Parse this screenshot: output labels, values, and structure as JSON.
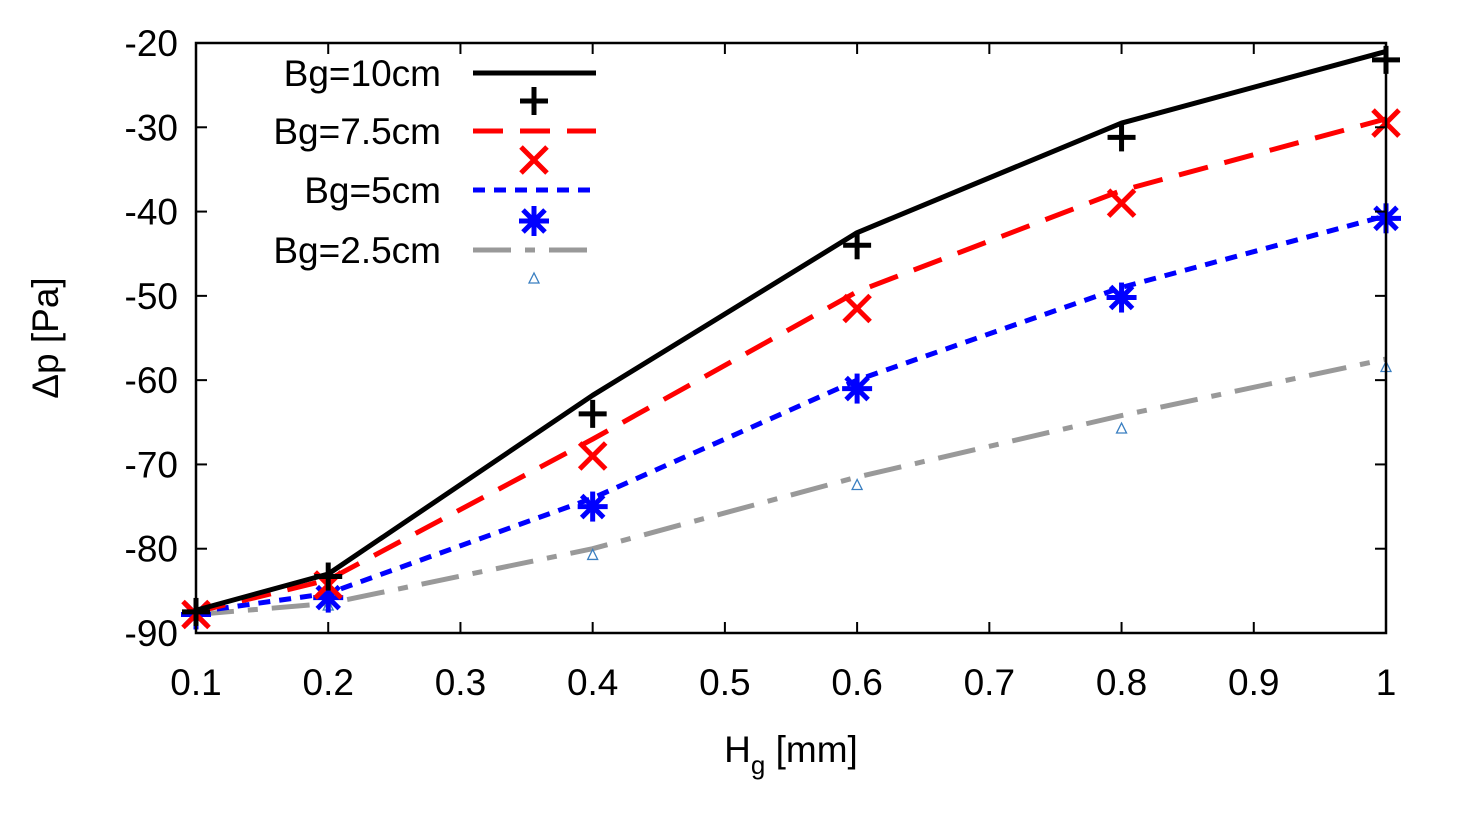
{
  "chart_data": {
    "type": "line",
    "title": "",
    "xlabel": {
      "main": "H",
      "sub": "g",
      "unit": " [mm]"
    },
    "ylabel": "Δp [Pa]",
    "xlim": [
      0.1,
      1.0
    ],
    "ylim": [
      -90,
      -20
    ],
    "xticks": [
      0.1,
      0.2,
      0.3,
      0.4,
      0.5,
      0.6,
      0.7,
      0.8,
      0.9,
      1.0
    ],
    "xtick_labels": [
      "0.1",
      "0.2",
      "0.3",
      "0.4",
      "0.5",
      "0.6",
      "0.7",
      "0.8",
      "0.9",
      "1"
    ],
    "yticks": [
      -90,
      -80,
      -70,
      -60,
      -50,
      -40,
      -30,
      -20
    ],
    "ytick_labels": [
      "-90",
      "-80",
      "-70",
      "-60",
      "-50",
      "-40",
      "-30",
      "-20"
    ],
    "grid": false,
    "legend_position": "top-left",
    "series": [
      {
        "name": "Bg=10cm",
        "color": "#000000",
        "dash": "solid",
        "marker": "plus",
        "x": [
          0.1,
          0.2,
          0.4,
          0.6,
          0.8,
          1.0
        ],
        "line_values": [
          -87.3,
          -83.0,
          -61.8,
          -42.5,
          -29.5,
          -21.0
        ],
        "marker_values": [
          -87.5,
          -83.3,
          -64.0,
          -44.0,
          -31.2,
          -22.0
        ]
      },
      {
        "name": "Bg=7.5cm",
        "color": "#ff0000",
        "dash": "dashed",
        "marker": "cross",
        "x": [
          0.1,
          0.2,
          0.4,
          0.6,
          0.8,
          1.0
        ],
        "line_values": [
          -87.5,
          -83.7,
          -67.0,
          -49.5,
          -37.5,
          -29.0
        ],
        "marker_values": [
          -87.8,
          -84.3,
          -69.0,
          -51.5,
          -39.0,
          -29.5
        ]
      },
      {
        "name": "Bg=5cm",
        "color": "#0000ff",
        "dash": "dotted",
        "marker": "star",
        "x": [
          0.1,
          0.2,
          0.4,
          0.6,
          0.8,
          1.0
        ],
        "line_values": [
          -87.5,
          -85.3,
          -74.0,
          -60.0,
          -49.0,
          -40.5
        ],
        "marker_values": [
          -87.8,
          -85.8,
          -75.0,
          -61.0,
          -50.2,
          -40.8
        ]
      },
      {
        "name": "Bg=2.5cm",
        "color": "#999999",
        "marker_color": "#3a7fc1",
        "dash": "dashdot",
        "marker": "triangle",
        "x": [
          0.1,
          0.2,
          0.4,
          0.6,
          0.8,
          1.0
        ],
        "line_values": [
          -87.8,
          -86.5,
          -80.0,
          -71.5,
          -64.2,
          -57.5
        ],
        "marker_values": [
          -87.8,
          -86.8,
          -80.8,
          -72.5,
          -65.8,
          -58.5
        ]
      }
    ]
  }
}
